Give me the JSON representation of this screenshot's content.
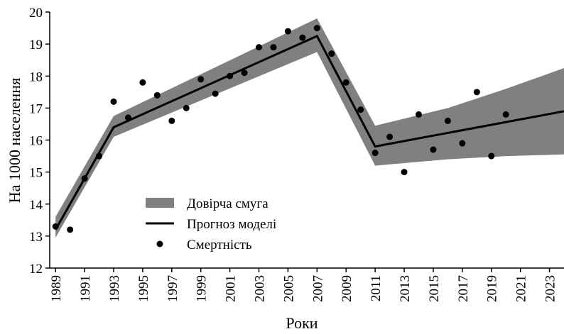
{
  "chart_data": {
    "type": "line",
    "xlabel": "Роки",
    "ylabel": "На 1000 населення",
    "xlim": [
      1988.6,
      2024
    ],
    "ylim": [
      12,
      20
    ],
    "xticks": [
      1989,
      1991,
      1993,
      1995,
      1997,
      1999,
      2001,
      2003,
      2005,
      2007,
      2009,
      2011,
      2013,
      2015,
      2017,
      2019,
      2021,
      2023
    ],
    "yticks": [
      12,
      13,
      14,
      15,
      16,
      17,
      18,
      19,
      20
    ],
    "legend": "lower-left",
    "band": {
      "name": "Довірча смуга",
      "color": "#808080",
      "x": [
        1989,
        1993,
        2007,
        2011,
        2016,
        2020,
        2024
      ],
      "lower": [
        12.95,
        16.1,
        18.75,
        15.2,
        15.4,
        15.5,
        15.55
      ],
      "upper": [
        13.6,
        16.75,
        19.8,
        16.45,
        17.0,
        17.6,
        18.25
      ]
    },
    "forecast": {
      "name": "Прогноз моделі",
      "color": "#000000",
      "x": [
        1989,
        1993,
        2007,
        2011,
        2024
      ],
      "values": [
        13.2,
        16.4,
        19.25,
        15.8,
        16.9
      ]
    },
    "mortality": {
      "name": "Смертність",
      "color": "#000000",
      "x": [
        1989,
        1990,
        1991,
        1992,
        1993,
        1994,
        1995,
        1996,
        1997,
        1998,
        1999,
        2000,
        2001,
        2002,
        2003,
        2004,
        2005,
        2006,
        2007,
        2008,
        2009,
        2010,
        2011,
        2012,
        2013,
        2014,
        2015,
        2016,
        2017,
        2018,
        2019,
        2020
      ],
      "values": [
        13.3,
        13.2,
        14.8,
        15.5,
        17.2,
        16.7,
        17.8,
        17.4,
        16.6,
        17.0,
        17.9,
        17.45,
        18.0,
        18.1,
        18.9,
        18.9,
        19.4,
        19.2,
        19.5,
        18.7,
        17.8,
        16.95,
        15.6,
        16.1,
        15.0,
        16.8,
        15.7,
        16.6,
        15.9,
        17.5,
        15.5,
        16.8
      ]
    }
  }
}
